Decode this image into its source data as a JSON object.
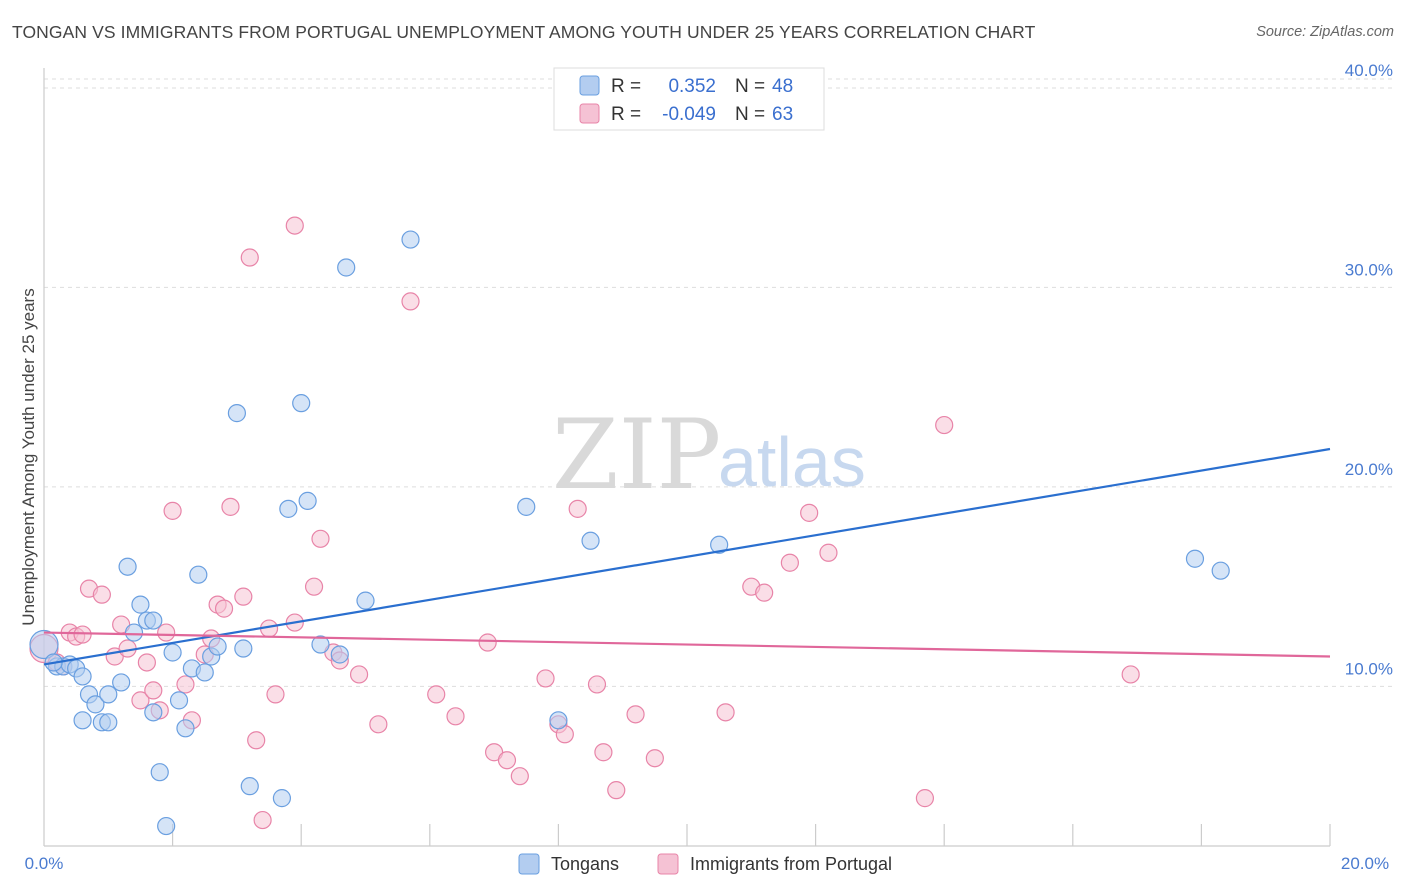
{
  "title": "TONGAN VS IMMIGRANTS FROM PORTUGAL UNEMPLOYMENT AMONG YOUTH UNDER 25 YEARS CORRELATION CHART",
  "source": "Source: ZipAtlas.com",
  "watermark": {
    "zip": "ZIP",
    "atlas": "atlas"
  },
  "colors": {
    "blue": "#6a9fe0",
    "blue_fill": "#b3cdf0",
    "pink": "#e884a8",
    "pink_fill": "#f5c2d4",
    "blue_line": "#2a6fcf",
    "pink_line": "#e0679a"
  },
  "legend": {
    "r_label": "R =",
    "n_label": "N =",
    "series1": {
      "r": "0.352",
      "n": "48"
    },
    "series2": {
      "r": "-0.049",
      "n": "63"
    }
  },
  "chart_data": {
    "type": "scatter",
    "title": "TONGAN VS IMMIGRANTS FROM PORTUGAL UNEMPLOYMENT AMONG YOUTH UNDER 25 YEARS CORRELATION CHART",
    "xlabel": "",
    "ylabel": "Unemployment Among Youth under 25 years",
    "xlim": [
      0,
      20
    ],
    "ylim": [
      2,
      41
    ],
    "x_tick_labels": [
      "0.0%",
      "20.0%"
    ],
    "y_ticks": [
      10,
      20,
      30,
      40
    ],
    "y_tick_labels": [
      "10.0%",
      "20.0%",
      "30.0%",
      "40.0%"
    ],
    "legend_position": "top-center",
    "series": [
      {
        "name": "Tongans",
        "r": 0.352,
        "n": 48,
        "trend": {
          "x": [
            0,
            20
          ],
          "y": [
            11.1,
            21.9
          ]
        },
        "points": [
          [
            0.0,
            12.1
          ],
          [
            0.2,
            11.0
          ],
          [
            0.3,
            11.0
          ],
          [
            0.4,
            11.1
          ],
          [
            0.5,
            10.9
          ],
          [
            0.6,
            10.5
          ],
          [
            0.6,
            8.3
          ],
          [
            0.7,
            9.6
          ],
          [
            0.8,
            9.1
          ],
          [
            0.9,
            8.2
          ],
          [
            1.0,
            9.6
          ],
          [
            1.0,
            8.2
          ],
          [
            1.2,
            10.2
          ],
          [
            1.3,
            16.0
          ],
          [
            1.4,
            12.7
          ],
          [
            1.5,
            14.1
          ],
          [
            1.6,
            13.3
          ],
          [
            1.7,
            13.3
          ],
          [
            1.7,
            8.7
          ],
          [
            1.8,
            5.7
          ],
          [
            1.9,
            3.0
          ],
          [
            2.0,
            11.7
          ],
          [
            2.1,
            9.3
          ],
          [
            2.2,
            7.9
          ],
          [
            2.3,
            10.9
          ],
          [
            2.4,
            15.6
          ],
          [
            2.5,
            10.7
          ],
          [
            2.6,
            11.5
          ],
          [
            2.7,
            12.0
          ],
          [
            3.0,
            23.7
          ],
          [
            3.1,
            11.9
          ],
          [
            3.2,
            5.0
          ],
          [
            3.7,
            4.4
          ],
          [
            3.8,
            18.9
          ],
          [
            4.0,
            24.2
          ],
          [
            4.1,
            19.3
          ],
          [
            4.3,
            12.1
          ],
          [
            4.6,
            11.6
          ],
          [
            4.7,
            31.0
          ],
          [
            5.0,
            14.3
          ],
          [
            5.7,
            32.4
          ],
          [
            7.5,
            19.0
          ],
          [
            8.0,
            8.3
          ],
          [
            8.5,
            17.3
          ],
          [
            10.5,
            17.1
          ],
          [
            17.9,
            16.4
          ],
          [
            18.3,
            15.8
          ],
          [
            0.15,
            11.2
          ]
        ]
      },
      {
        "name": "Immigrants from Portugal",
        "r": -0.049,
        "n": 63,
        "trend": {
          "x": [
            0,
            20
          ],
          "y": [
            12.7,
            11.5
          ]
        },
        "points": [
          [
            0.0,
            11.9
          ],
          [
            0.2,
            11.2
          ],
          [
            0.3,
            11.0
          ],
          [
            0.4,
            12.7
          ],
          [
            0.5,
            12.5
          ],
          [
            0.6,
            12.6
          ],
          [
            0.7,
            14.9
          ],
          [
            0.9,
            14.6
          ],
          [
            1.1,
            11.5
          ],
          [
            1.2,
            13.1
          ],
          [
            1.3,
            11.9
          ],
          [
            1.5,
            9.3
          ],
          [
            1.6,
            11.2
          ],
          [
            1.7,
            9.8
          ],
          [
            1.8,
            8.8
          ],
          [
            1.9,
            12.7
          ],
          [
            2.0,
            18.8
          ],
          [
            2.2,
            10.1
          ],
          [
            2.3,
            8.3
          ],
          [
            2.5,
            11.6
          ],
          [
            2.6,
            12.4
          ],
          [
            2.7,
            14.1
          ],
          [
            2.8,
            13.9
          ],
          [
            2.9,
            19.0
          ],
          [
            3.1,
            14.5
          ],
          [
            3.2,
            31.5
          ],
          [
            3.3,
            7.3
          ],
          [
            3.4,
            3.3
          ],
          [
            3.5,
            12.9
          ],
          [
            3.6,
            9.6
          ],
          [
            3.9,
            13.2
          ],
          [
            3.9,
            33.1
          ],
          [
            4.2,
            15.0
          ],
          [
            4.3,
            17.4
          ],
          [
            4.5,
            11.7
          ],
          [
            4.6,
            11.3
          ],
          [
            4.9,
            10.6
          ],
          [
            5.2,
            8.1
          ],
          [
            5.7,
            29.3
          ],
          [
            6.1,
            9.6
          ],
          [
            6.4,
            8.5
          ],
          [
            6.9,
            12.2
          ],
          [
            7.0,
            6.7
          ],
          [
            7.2,
            6.3
          ],
          [
            7.4,
            5.5
          ],
          [
            7.8,
            10.4
          ],
          [
            8.0,
            8.1
          ],
          [
            8.1,
            7.6
          ],
          [
            8.3,
            18.9
          ],
          [
            8.6,
            10.1
          ],
          [
            8.7,
            6.7
          ],
          [
            8.9,
            4.8
          ],
          [
            9.2,
            8.6
          ],
          [
            9.5,
            6.4
          ],
          [
            10.6,
            8.7
          ],
          [
            11.0,
            15.0
          ],
          [
            11.2,
            14.7
          ],
          [
            11.6,
            16.2
          ],
          [
            11.9,
            18.7
          ],
          [
            12.2,
            16.7
          ],
          [
            13.7,
            4.4
          ],
          [
            14.0,
            23.1
          ],
          [
            16.9,
            10.6
          ]
        ]
      }
    ]
  }
}
